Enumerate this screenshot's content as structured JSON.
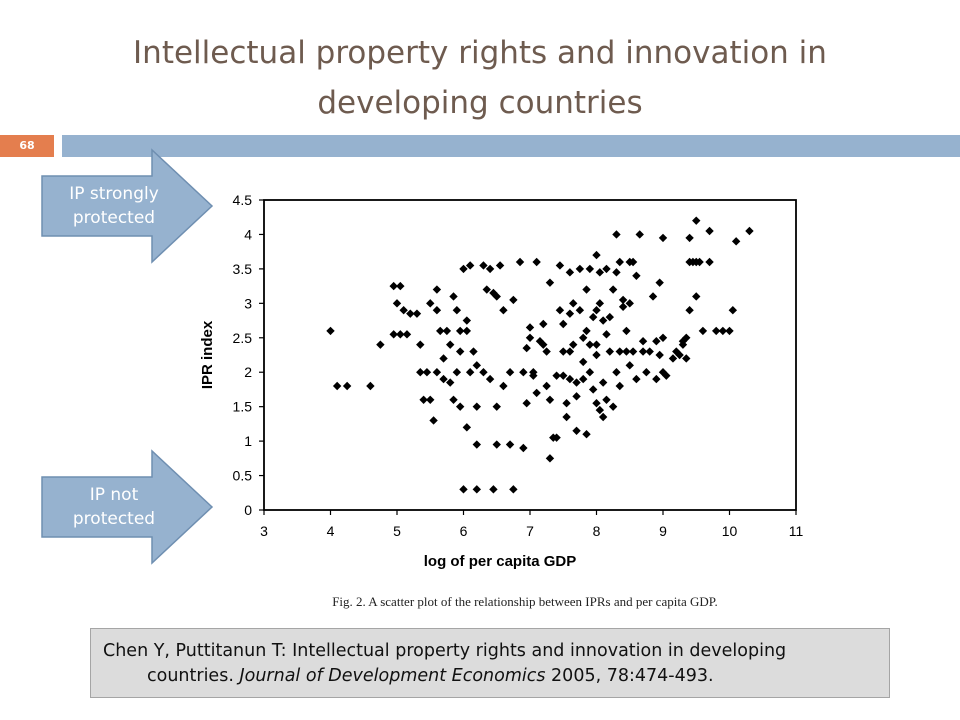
{
  "slide": {
    "title": "Intellectual property rights and innovation in developing countries",
    "number": "68"
  },
  "arrows": {
    "strong": "IP strongly protected",
    "not": "IP not protected"
  },
  "colors": {
    "band": "#96b2cf",
    "number_box": "#e47e4e",
    "title": "#6e5b4f",
    "arrow": "#96b2cf"
  },
  "citation": {
    "line1": "Chen Y, Puttitanun T: Intellectual property rights and innovation in developing",
    "line2_pre": "countries. ",
    "journal": "Journal of  Development Economics",
    "line2_post": " 2005, 78:474-493."
  },
  "chart_data": {
    "type": "scatter",
    "xlabel": "log of per capita GDP",
    "ylabel": "IPR index",
    "xlim": [
      3,
      11
    ],
    "ylim": [
      0,
      4.5
    ],
    "xticks": [
      "3",
      "4",
      "5",
      "6",
      "7",
      "8",
      "9",
      "10",
      "11"
    ],
    "yticks": [
      "0",
      "0.5",
      "1",
      "1.5",
      "2",
      "2.5",
      "3",
      "3.5",
      "4",
      "4.5"
    ],
    "caption": "Fig. 2. A scatter plot of the relationship between IPRs and per capita GDP.",
    "marker": "diamond",
    "grid": false,
    "points": [
      [
        4.0,
        2.6
      ],
      [
        4.1,
        1.8
      ],
      [
        4.25,
        1.8
      ],
      [
        4.6,
        1.8
      ],
      [
        4.75,
        2.4
      ],
      [
        4.95,
        3.25
      ],
      [
        5.05,
        3.25
      ],
      [
        5.0,
        3.0
      ],
      [
        5.1,
        2.9
      ],
      [
        4.95,
        2.55
      ],
      [
        5.05,
        2.55
      ],
      [
        5.15,
        2.55
      ],
      [
        5.2,
        2.85
      ],
      [
        5.3,
        2.85
      ],
      [
        5.35,
        2.4
      ],
      [
        5.35,
        2.0
      ],
      [
        5.45,
        2.0
      ],
      [
        5.4,
        1.6
      ],
      [
        5.5,
        1.6
      ],
      [
        5.55,
        1.3
      ],
      [
        5.5,
        3.0
      ],
      [
        5.6,
        3.2
      ],
      [
        5.6,
        2.9
      ],
      [
        5.65,
        2.6
      ],
      [
        5.75,
        2.6
      ],
      [
        5.8,
        2.4
      ],
      [
        5.7,
        2.2
      ],
      [
        5.6,
        2.0
      ],
      [
        5.7,
        1.9
      ],
      [
        5.8,
        1.85
      ],
      [
        5.85,
        3.1
      ],
      [
        5.9,
        2.9
      ],
      [
        5.95,
        2.6
      ],
      [
        5.95,
        2.3
      ],
      [
        5.9,
        2.0
      ],
      [
        5.85,
        1.6
      ],
      [
        5.95,
        1.5
      ],
      [
        6.05,
        2.6
      ],
      [
        6.05,
        2.75
      ],
      [
        6.0,
        3.5
      ],
      [
        6.1,
        3.55
      ],
      [
        6.05,
        1.2
      ],
      [
        6.1,
        2.0
      ],
      [
        6.15,
        2.3
      ],
      [
        6.2,
        2.1
      ],
      [
        6.2,
        1.5
      ],
      [
        6.2,
        0.95
      ],
      [
        6.3,
        2.0
      ],
      [
        6.3,
        3.55
      ],
      [
        6.35,
        3.2
      ],
      [
        6.4,
        3.5
      ],
      [
        6.45,
        3.15
      ],
      [
        6.5,
        3.1
      ],
      [
        6.5,
        1.5
      ],
      [
        6.4,
        1.9
      ],
      [
        6.55,
        3.55
      ],
      [
        6.6,
        2.9
      ],
      [
        6.6,
        1.8
      ],
      [
        6.7,
        2.0
      ],
      [
        6.75,
        3.05
      ],
      [
        6.7,
        0.95
      ],
      [
        6.5,
        0.95
      ],
      [
        6.0,
        0.3
      ],
      [
        6.2,
        0.3
      ],
      [
        6.45,
        0.3
      ],
      [
        6.75,
        0.3
      ],
      [
        6.85,
        3.6
      ],
      [
        6.9,
        2.0
      ],
      [
        6.95,
        2.35
      ],
      [
        6.95,
        1.55
      ],
      [
        6.9,
        0.9
      ],
      [
        7.0,
        2.5
      ],
      [
        7.0,
        2.65
      ],
      [
        7.05,
        2.0
      ],
      [
        7.05,
        1.95
      ],
      [
        7.1,
        1.7
      ],
      [
        7.1,
        3.6
      ],
      [
        7.15,
        2.45
      ],
      [
        7.2,
        2.4
      ],
      [
        7.2,
        2.7
      ],
      [
        7.25,
        2.3
      ],
      [
        7.25,
        1.8
      ],
      [
        7.3,
        3.3
      ],
      [
        7.3,
        1.6
      ],
      [
        7.3,
        0.75
      ],
      [
        7.35,
        1.05
      ],
      [
        7.4,
        1.95
      ],
      [
        7.4,
        1.05
      ],
      [
        7.45,
        3.55
      ],
      [
        7.45,
        2.9
      ],
      [
        7.5,
        2.7
      ],
      [
        7.5,
        2.3
      ],
      [
        7.5,
        1.95
      ],
      [
        7.55,
        1.55
      ],
      [
        7.55,
        1.35
      ],
      [
        7.6,
        3.45
      ],
      [
        7.6,
        2.85
      ],
      [
        7.6,
        2.3
      ],
      [
        7.6,
        1.9
      ],
      [
        7.65,
        3.0
      ],
      [
        7.65,
        2.4
      ],
      [
        7.7,
        1.85
      ],
      [
        7.7,
        1.65
      ],
      [
        7.7,
        1.15
      ],
      [
        7.75,
        3.5
      ],
      [
        7.75,
        2.9
      ],
      [
        7.8,
        2.5
      ],
      [
        7.8,
        2.15
      ],
      [
        7.8,
        1.9
      ],
      [
        7.85,
        3.2
      ],
      [
        7.85,
        2.6
      ],
      [
        7.85,
        1.1
      ],
      [
        7.9,
        3.5
      ],
      [
        7.9,
        2.4
      ],
      [
        7.9,
        2.0
      ],
      [
        7.95,
        2.8
      ],
      [
        7.95,
        1.75
      ],
      [
        8.0,
        2.9
      ],
      [
        8.0,
        2.4
      ],
      [
        8.0,
        2.25
      ],
      [
        8.0,
        1.55
      ],
      [
        8.05,
        3.0
      ],
      [
        8.05,
        1.45
      ],
      [
        8.1,
        2.75
      ],
      [
        8.1,
        1.85
      ],
      [
        8.1,
        1.35
      ],
      [
        8.15,
        3.5
      ],
      [
        8.15,
        2.55
      ],
      [
        8.15,
        1.6
      ],
      [
        8.2,
        2.8
      ],
      [
        8.2,
        2.3
      ],
      [
        8.25,
        3.2
      ],
      [
        8.25,
        1.5
      ],
      [
        8.3,
        4.0
      ],
      [
        8.3,
        3.45
      ],
      [
        8.3,
        2.0
      ],
      [
        8.35,
        3.6
      ],
      [
        8.35,
        2.3
      ],
      [
        8.35,
        1.8
      ],
      [
        8.4,
        3.05
      ],
      [
        8.4,
        2.95
      ],
      [
        8.45,
        2.6
      ],
      [
        8.45,
        2.3
      ],
      [
        8.5,
        3.6
      ],
      [
        8.5,
        3.0
      ],
      [
        8.5,
        2.1
      ],
      [
        8.55,
        3.6
      ],
      [
        8.55,
        2.3
      ],
      [
        8.6,
        3.4
      ],
      [
        8.6,
        1.9
      ],
      [
        8.65,
        4.0
      ],
      [
        8.7,
        2.3
      ],
      [
        8.75,
        2.0
      ],
      [
        8.8,
        2.3
      ],
      [
        8.85,
        3.1
      ],
      [
        8.9,
        1.9
      ],
      [
        8.95,
        2.25
      ],
      [
        9.0,
        2.5
      ],
      [
        9.0,
        2.0
      ],
      [
        9.05,
        1.95
      ],
      [
        8.95,
        3.3
      ],
      [
        8.0,
        3.7
      ],
      [
        8.05,
        3.45
      ],
      [
        9.0,
        3.95
      ],
      [
        9.15,
        2.2
      ],
      [
        9.2,
        2.3
      ],
      [
        9.3,
        2.45
      ],
      [
        9.35,
        2.2
      ],
      [
        9.4,
        3.6
      ],
      [
        9.45,
        3.6
      ],
      [
        9.5,
        3.6
      ],
      [
        9.55,
        3.6
      ],
      [
        9.4,
        2.9
      ],
      [
        9.5,
        3.1
      ],
      [
        9.6,
        2.6
      ],
      [
        9.35,
        2.5
      ],
      [
        9.25,
        2.25
      ],
      [
        9.3,
        2.4
      ],
      [
        9.5,
        4.2
      ],
      [
        9.7,
        4.05
      ],
      [
        9.7,
        3.6
      ],
      [
        9.4,
        3.95
      ],
      [
        9.8,
        2.6
      ],
      [
        9.9,
        2.6
      ],
      [
        10.0,
        2.6
      ],
      [
        10.05,
        2.9
      ],
      [
        10.1,
        3.9
      ],
      [
        10.3,
        4.05
      ],
      [
        8.7,
        2.45
      ],
      [
        8.9,
        2.45
      ]
    ]
  }
}
